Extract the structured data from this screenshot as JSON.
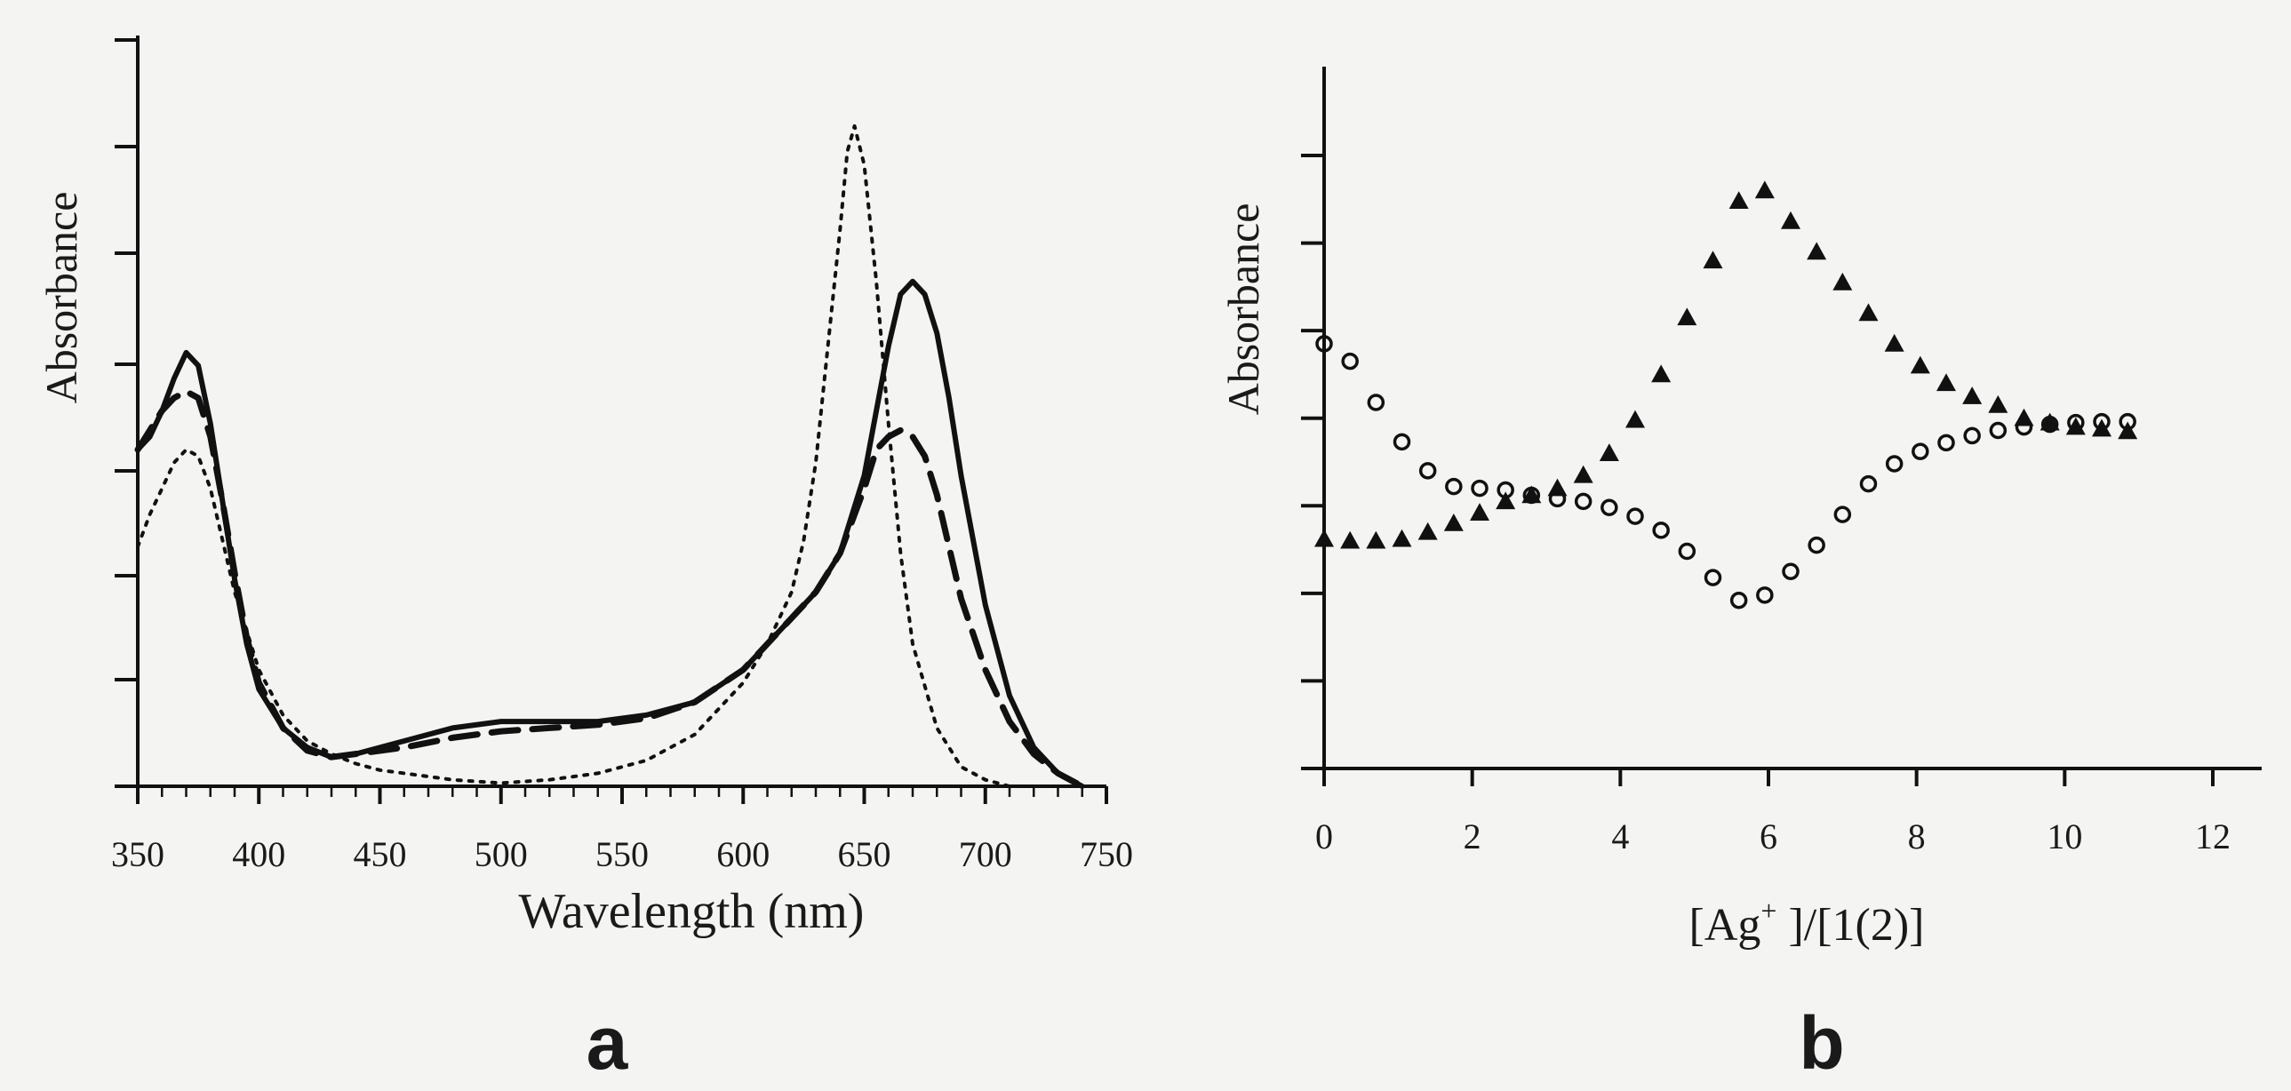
{
  "chart_data": [
    {
      "panel": "a",
      "type": "line",
      "xlabel": "Wavelength (nm)",
      "ylabel": "Absorbance",
      "xlim": [
        350,
        750
      ],
      "ylim": [
        0,
        1.05
      ],
      "x_ticks": [
        350,
        400,
        450,
        500,
        550,
        600,
        650,
        700,
        750
      ],
      "legend": "none",
      "grid": false,
      "series": [
        {
          "style": "solid",
          "x": [
            350,
            355,
            360,
            365,
            370,
            375,
            380,
            385,
            390,
            395,
            400,
            410,
            420,
            430,
            440,
            460,
            480,
            500,
            520,
            540,
            560,
            580,
            600,
            610,
            620,
            630,
            640,
            650,
            655,
            660,
            665,
            670,
            675,
            680,
            685,
            690,
            700,
            710,
            720,
            730,
            740
          ],
          "y": [
            0.52,
            0.54,
            0.58,
            0.63,
            0.67,
            0.65,
            0.56,
            0.44,
            0.32,
            0.22,
            0.15,
            0.09,
            0.06,
            0.045,
            0.05,
            0.07,
            0.09,
            0.1,
            0.1,
            0.1,
            0.11,
            0.13,
            0.18,
            0.22,
            0.26,
            0.3,
            0.36,
            0.48,
            0.58,
            0.68,
            0.76,
            0.78,
            0.76,
            0.7,
            0.6,
            0.48,
            0.28,
            0.14,
            0.06,
            0.02,
            0.0
          ]
        },
        {
          "style": "dashed",
          "x": [
            350,
            355,
            360,
            365,
            370,
            375,
            380,
            385,
            390,
            395,
            400,
            410,
            420,
            430,
            440,
            460,
            480,
            500,
            520,
            540,
            560,
            580,
            600,
            610,
            620,
            630,
            640,
            650,
            655,
            660,
            665,
            670,
            675,
            680,
            685,
            690,
            700,
            710,
            720,
            730,
            740
          ],
          "y": [
            0.52,
            0.55,
            0.58,
            0.6,
            0.61,
            0.6,
            0.54,
            0.44,
            0.33,
            0.23,
            0.16,
            0.09,
            0.055,
            0.045,
            0.05,
            0.06,
            0.075,
            0.085,
            0.09,
            0.095,
            0.105,
            0.13,
            0.18,
            0.22,
            0.26,
            0.3,
            0.36,
            0.46,
            0.52,
            0.54,
            0.55,
            0.54,
            0.51,
            0.45,
            0.37,
            0.29,
            0.18,
            0.1,
            0.05,
            0.02,
            0.0
          ]
        },
        {
          "style": "dotted",
          "x": [
            350,
            355,
            360,
            365,
            370,
            375,
            380,
            385,
            390,
            400,
            410,
            420,
            430,
            440,
            450,
            460,
            480,
            500,
            520,
            540,
            560,
            580,
            600,
            610,
            620,
            625,
            630,
            635,
            640,
            643,
            646,
            650,
            655,
            660,
            665,
            670,
            680,
            690,
            700,
            710
          ],
          "y": [
            0.37,
            0.42,
            0.46,
            0.5,
            0.52,
            0.51,
            0.46,
            0.38,
            0.3,
            0.18,
            0.11,
            0.07,
            0.05,
            0.035,
            0.025,
            0.02,
            0.01,
            0.005,
            0.01,
            0.02,
            0.04,
            0.08,
            0.16,
            0.22,
            0.3,
            0.38,
            0.5,
            0.68,
            0.86,
            0.98,
            1.02,
            0.96,
            0.78,
            0.56,
            0.36,
            0.22,
            0.09,
            0.03,
            0.01,
            0.0
          ]
        }
      ]
    },
    {
      "panel": "b",
      "type": "scatter",
      "xlabel": "[Ag⁺ ]/[1(2)]",
      "ylabel": "Absorbance",
      "xlim": [
        0,
        12
      ],
      "ylim": [
        0,
        7
      ],
      "x_ticks": [
        0,
        2,
        4,
        6,
        8,
        10,
        12
      ],
      "legend": "none",
      "grid": false,
      "series": [
        {
          "marker": "triangle",
          "x": [
            0.0,
            0.35,
            0.7,
            1.05,
            1.4,
            1.75,
            2.1,
            2.45,
            2.8,
            3.15,
            3.5,
            3.85,
            4.2,
            4.55,
            4.9,
            5.25,
            5.6,
            5.95,
            6.3,
            6.65,
            7.0,
            7.35,
            7.7,
            8.05,
            8.4,
            8.75,
            9.1,
            9.45,
            9.8,
            10.15,
            10.5,
            10.85
          ],
          "y": [
            2.62,
            2.6,
            2.6,
            2.62,
            2.7,
            2.8,
            2.92,
            3.05,
            3.12,
            3.2,
            3.35,
            3.6,
            3.98,
            4.5,
            5.15,
            5.8,
            6.48,
            6.6,
            6.25,
            5.9,
            5.55,
            5.2,
            4.85,
            4.6,
            4.4,
            4.25,
            4.15,
            4.0,
            3.95,
            3.9,
            3.88,
            3.85
          ]
        },
        {
          "marker": "circle",
          "x": [
            0.0,
            0.35,
            0.7,
            1.05,
            1.4,
            1.75,
            2.1,
            2.45,
            2.8,
            3.15,
            3.5,
            3.85,
            4.2,
            4.55,
            4.9,
            5.25,
            5.6,
            5.95,
            6.3,
            6.65,
            7.0,
            7.35,
            7.7,
            8.05,
            8.4,
            8.75,
            9.1,
            9.45,
            9.8,
            10.15,
            10.5,
            10.85
          ],
          "y": [
            4.85,
            4.65,
            4.18,
            3.73,
            3.4,
            3.22,
            3.2,
            3.18,
            3.12,
            3.08,
            3.05,
            2.98,
            2.88,
            2.72,
            2.48,
            2.18,
            1.92,
            1.98,
            2.25,
            2.55,
            2.9,
            3.25,
            3.48,
            3.62,
            3.72,
            3.8,
            3.86,
            3.9,
            3.93,
            3.95,
            3.96,
            3.96
          ]
        }
      ]
    }
  ],
  "panels": {
    "a": {
      "label": "a",
      "xlabel": "Wavelength (nm)",
      "ylabel": "Absorbance"
    },
    "b": {
      "label": "b",
      "xlabel_base": "[Ag",
      "xlabel_sup": "+",
      "xlabel_tail": " ]/[1(2)]",
      "ylabel": "Absorbance"
    }
  }
}
